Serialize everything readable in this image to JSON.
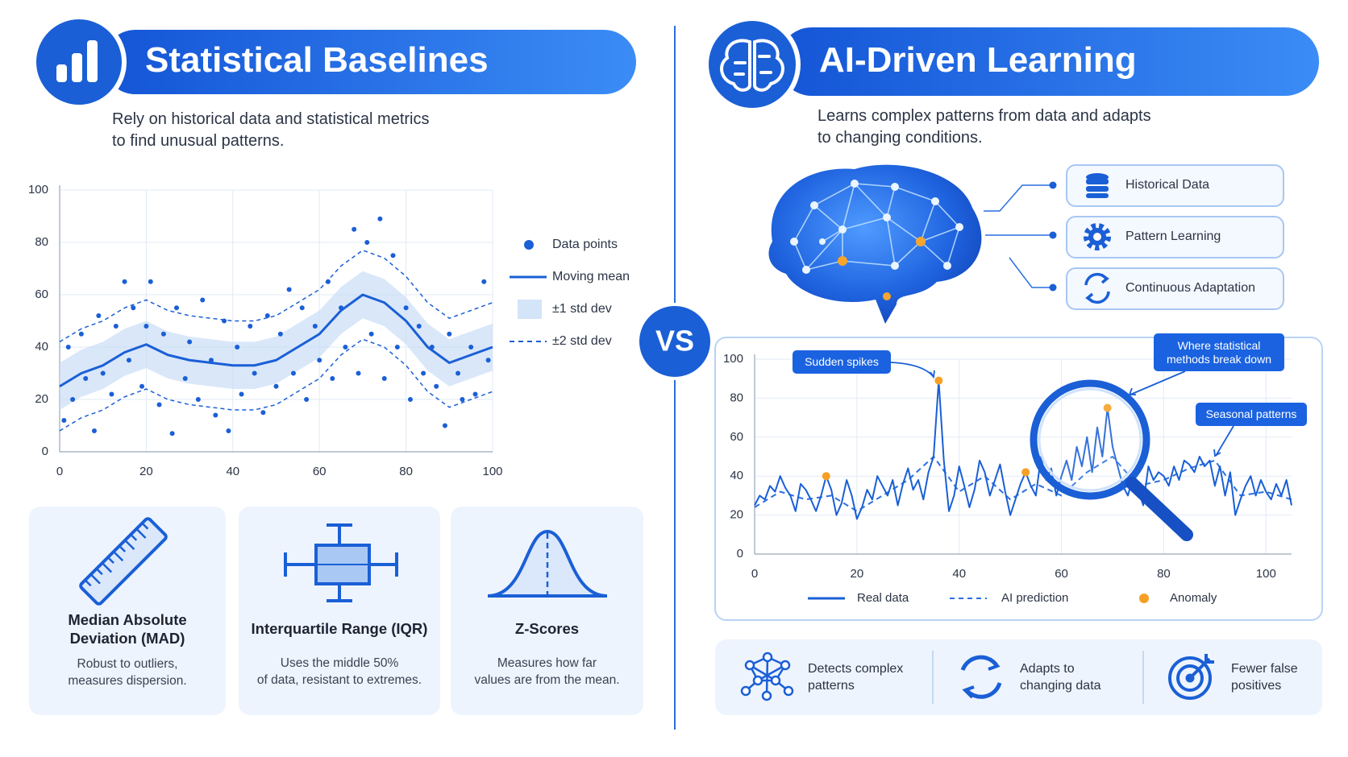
{
  "left": {
    "title": "Statistical Baselines",
    "subtitle": [
      "Rely on historical data and statistical metrics",
      "to find unusual patterns."
    ],
    "cards": [
      {
        "title": [
          "Median Absolute",
          "Deviation (MAD)"
        ],
        "desc": [
          "Robust to outliers,",
          "measures dispersion."
        ]
      },
      {
        "title": [
          "Interquartile Range (IQR)"
        ],
        "desc": [
          "Uses the middle 50%",
          "of data, resistant to extremes."
        ]
      },
      {
        "title": [
          "Z-Scores"
        ],
        "desc": [
          "Measures how far",
          "values are from the mean."
        ]
      }
    ]
  },
  "vs": "VS",
  "right": {
    "title": "AI-Driven Learning",
    "subtitle": [
      "Learns complex patterns from data and adapts",
      "to changing conditions."
    ],
    "steps": [
      "Historical Data",
      "Pattern Learning",
      "Continuous Adaptation"
    ],
    "benefits": [
      [
        "Detects complex",
        "patterns"
      ],
      [
        "Adapts to",
        "changing data"
      ],
      [
        "Fewer false",
        "positives"
      ]
    ]
  },
  "chart_data": [
    {
      "type": "scatter",
      "xlim": [
        0,
        100
      ],
      "ylim": [
        0,
        100
      ],
      "xticks": [
        0,
        20,
        40,
        60,
        80,
        100
      ],
      "yticks": [
        0,
        20,
        40,
        60,
        80,
        100
      ],
      "grid": true,
      "legend": "right",
      "series": [
        {
          "name": "Data points",
          "style": "markers",
          "color": "#1a5fd6",
          "x": [
            1,
            2,
            3,
            5,
            6,
            8,
            9,
            10,
            12,
            13,
            15,
            16,
            17,
            19,
            20,
            21,
            23,
            24,
            26,
            27,
            29,
            30,
            32,
            33,
            35,
            36,
            38,
            39,
            41,
            42,
            44,
            45,
            47,
            48,
            50,
            51,
            53,
            54,
            56,
            57,
            59,
            60,
            62,
            63,
            65,
            66,
            68,
            69,
            71,
            72,
            74,
            75,
            77,
            78,
            80,
            81,
            83,
            84,
            86,
            87,
            89,
            90,
            92,
            93,
            95,
            96,
            98,
            99
          ],
          "values": [
            12,
            40,
            20,
            45,
            28,
            8,
            52,
            30,
            22,
            48,
            65,
            35,
            55,
            25,
            48,
            65,
            18,
            45,
            7,
            55,
            28,
            42,
            20,
            58,
            35,
            14,
            50,
            8,
            40,
            22,
            48,
            30,
            15,
            52,
            25,
            45,
            62,
            30,
            55,
            20,
            48,
            35,
            65,
            28,
            55,
            40,
            85,
            30,
            80,
            45,
            89,
            28,
            75,
            40,
            55,
            20,
            48,
            30,
            40,
            25,
            10,
            45,
            30,
            20,
            40,
            22,
            65,
            35
          ]
        },
        {
          "name": "Moving mean",
          "style": "line",
          "color": "#1a5fd6",
          "x": [
            0,
            5,
            10,
            15,
            20,
            25,
            30,
            35,
            40,
            45,
            50,
            55,
            60,
            65,
            70,
            75,
            80,
            85,
            90,
            95,
            100
          ],
          "values": [
            25,
            30,
            33,
            38,
            41,
            37,
            35,
            34,
            33,
            33,
            35,
            40,
            45,
            54,
            60,
            57,
            50,
            40,
            34,
            37,
            40
          ]
        },
        {
          "name": "±1 std dev",
          "style": "band",
          "color": "#c9ddf7",
          "x": [
            0,
            5,
            10,
            15,
            20,
            25,
            30,
            35,
            40,
            45,
            50,
            55,
            60,
            65,
            70,
            75,
            80,
            85,
            90,
            95,
            100
          ],
          "upper": [
            34,
            39,
            42,
            47,
            50,
            46,
            44,
            43,
            42,
            42,
            44,
            49,
            54,
            63,
            69,
            66,
            59,
            49,
            43,
            46,
            49
          ],
          "lower": [
            16,
            21,
            24,
            29,
            32,
            28,
            26,
            25,
            24,
            24,
            26,
            31,
            36,
            45,
            51,
            48,
            41,
            31,
            25,
            28,
            31
          ]
        },
        {
          "name": "±2 std dev",
          "style": "dashed-band",
          "color": "#1a5fd6",
          "x": [
            0,
            5,
            10,
            15,
            20,
            25,
            30,
            35,
            40,
            45,
            50,
            55,
            60,
            65,
            70,
            75,
            80,
            85,
            90,
            95,
            100
          ],
          "upper": [
            42,
            47,
            50,
            55,
            58,
            54,
            52,
            51,
            50,
            50,
            52,
            57,
            62,
            71,
            77,
            74,
            67,
            57,
            51,
            54,
            57
          ],
          "lower": [
            8,
            13,
            16,
            21,
            24,
            20,
            18,
            17,
            16,
            16,
            18,
            23,
            28,
            37,
            43,
            40,
            33,
            23,
            17,
            20,
            23
          ]
        }
      ]
    },
    {
      "type": "line",
      "xlim": [
        0,
        105
      ],
      "ylim": [
        0,
        100
      ],
      "xticks": [
        0,
        20,
        40,
        60,
        80,
        100
      ],
      "yticks": [
        0,
        20,
        40,
        60,
        80,
        100
      ],
      "grid": true,
      "legend": "bottom",
      "annotations": [
        [
          "Sudden spikes"
        ],
        [
          "Where statistical",
          "methods break down"
        ],
        [
          "Seasonal patterns"
        ]
      ],
      "series": [
        {
          "name": "Real data",
          "style": "line",
          "color": "#1a5fd6",
          "x": [
            0,
            1,
            2,
            3,
            4,
            5,
            6,
            7,
            8,
            9,
            10,
            11,
            12,
            13,
            14,
            15,
            16,
            17,
            18,
            19,
            20,
            21,
            22,
            23,
            24,
            25,
            26,
            27,
            28,
            29,
            30,
            31,
            32,
            33,
            34,
            35,
            36,
            37,
            38,
            39,
            40,
            41,
            42,
            43,
            44,
            45,
            46,
            47,
            48,
            49,
            50,
            51,
            52,
            53,
            54,
            55,
            56,
            57,
            58,
            59,
            60,
            61,
            62,
            63,
            64,
            65,
            66,
            67,
            68,
            69,
            70,
            71,
            72,
            73,
            74,
            75,
            76,
            77,
            78,
            79,
            80,
            81,
            82,
            83,
            84,
            85,
            86,
            87,
            88,
            89,
            90,
            91,
            92,
            93,
            94,
            95,
            96,
            97,
            98,
            99,
            100,
            101,
            102,
            103,
            104,
            105
          ],
          "values": [
            25,
            30,
            28,
            35,
            32,
            40,
            34,
            30,
            22,
            36,
            33,
            28,
            22,
            30,
            40,
            33,
            20,
            26,
            38,
            30,
            18,
            24,
            33,
            28,
            40,
            35,
            30,
            38,
            25,
            36,
            44,
            33,
            38,
            28,
            42,
            50,
            89,
            48,
            22,
            30,
            45,
            35,
            24,
            33,
            48,
            42,
            30,
            38,
            46,
            32,
            20,
            28,
            36,
            42,
            35,
            30,
            50,
            38,
            44,
            30,
            40,
            48,
            38,
            55,
            45,
            60,
            42,
            65,
            50,
            75,
            55,
            45,
            35,
            30,
            40,
            33,
            25,
            45,
            38,
            42,
            40,
            35,
            45,
            38,
            48,
            46,
            42,
            50,
            45,
            48,
            35,
            45,
            30,
            42,
            20,
            28,
            35,
            40,
            30,
            38,
            32,
            28,
            36,
            30,
            38,
            25
          ]
        },
        {
          "name": "AI prediction",
          "style": "dashed",
          "color": "#2a6fe0",
          "x": [
            0,
            5,
            10,
            15,
            20,
            25,
            30,
            35,
            40,
            45,
            50,
            55,
            60,
            65,
            70,
            75,
            80,
            85,
            90,
            95,
            100,
            105
          ],
          "values": [
            24,
            32,
            28,
            30,
            22,
            30,
            38,
            50,
            32,
            40,
            28,
            36,
            30,
            42,
            50,
            35,
            38,
            44,
            48,
            30,
            32,
            28
          ]
        },
        {
          "name": "Anomaly",
          "style": "markers",
          "color": "#f5a025",
          "x": [
            14,
            36,
            53,
            69
          ],
          "values": [
            40,
            89,
            42,
            75
          ]
        }
      ]
    }
  ]
}
